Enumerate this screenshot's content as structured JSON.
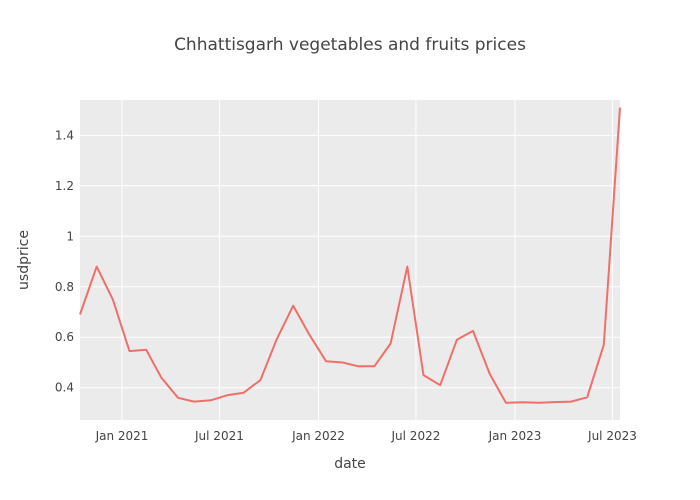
{
  "chart_data": {
    "type": "line",
    "title": "Chhattisgarh vegetables and fruits prices",
    "xlabel": "date",
    "ylabel": "usdprice",
    "x_range": [
      "2020-10-15",
      "2023-07-15"
    ],
    "ylim": [
      0.272,
      1.54
    ],
    "x_tick_labels": [
      "Jan 2021",
      "Jul 2021",
      "Jan 2022",
      "Jul 2022",
      "Jan 2023",
      "Jul 2023"
    ],
    "x_tick_dates": [
      "2021-01-01",
      "2021-07-01",
      "2022-01-01",
      "2022-07-01",
      "2023-01-01",
      "2023-07-01"
    ],
    "y_ticks": [
      0.4,
      0.6,
      0.8,
      1.0,
      1.2,
      1.4
    ],
    "y_tick_labels": [
      "0.4",
      "0.6",
      "0.8",
      "1",
      "1.2",
      "1.4"
    ],
    "grid": true,
    "colors": {
      "line": "#ef6f6a",
      "plot_bg": "#ebebeb"
    },
    "series": [
      {
        "x": [
          "2020-10-15",
          "2020-11-15",
          "2020-12-15",
          "2021-01-15",
          "2021-02-15",
          "2021-03-15",
          "2021-04-15",
          "2021-05-15",
          "2021-06-15",
          "2021-07-15",
          "2021-08-15",
          "2021-09-15",
          "2021-10-15",
          "2021-11-15",
          "2021-12-15",
          "2022-01-15",
          "2022-02-15",
          "2022-03-15",
          "2022-04-15",
          "2022-05-15",
          "2022-06-15",
          "2022-07-15",
          "2022-08-15",
          "2022-09-15",
          "2022-10-15",
          "2022-11-15",
          "2022-12-15",
          "2023-01-15",
          "2023-02-15",
          "2023-03-15",
          "2023-04-15",
          "2023-05-15",
          "2023-06-15",
          "2023-07-15"
        ],
        "y": [
          0.69,
          0.88,
          0.75,
          0.545,
          0.55,
          0.44,
          0.36,
          0.345,
          0.35,
          0.37,
          0.38,
          0.43,
          0.59,
          0.725,
          0.61,
          0.505,
          0.5,
          0.485,
          0.485,
          0.575,
          0.88,
          0.45,
          0.41,
          0.59,
          0.625,
          0.455,
          0.34,
          0.342,
          0.34,
          0.343,
          0.345,
          0.362,
          0.57,
          1.51
        ]
      }
    ]
  }
}
